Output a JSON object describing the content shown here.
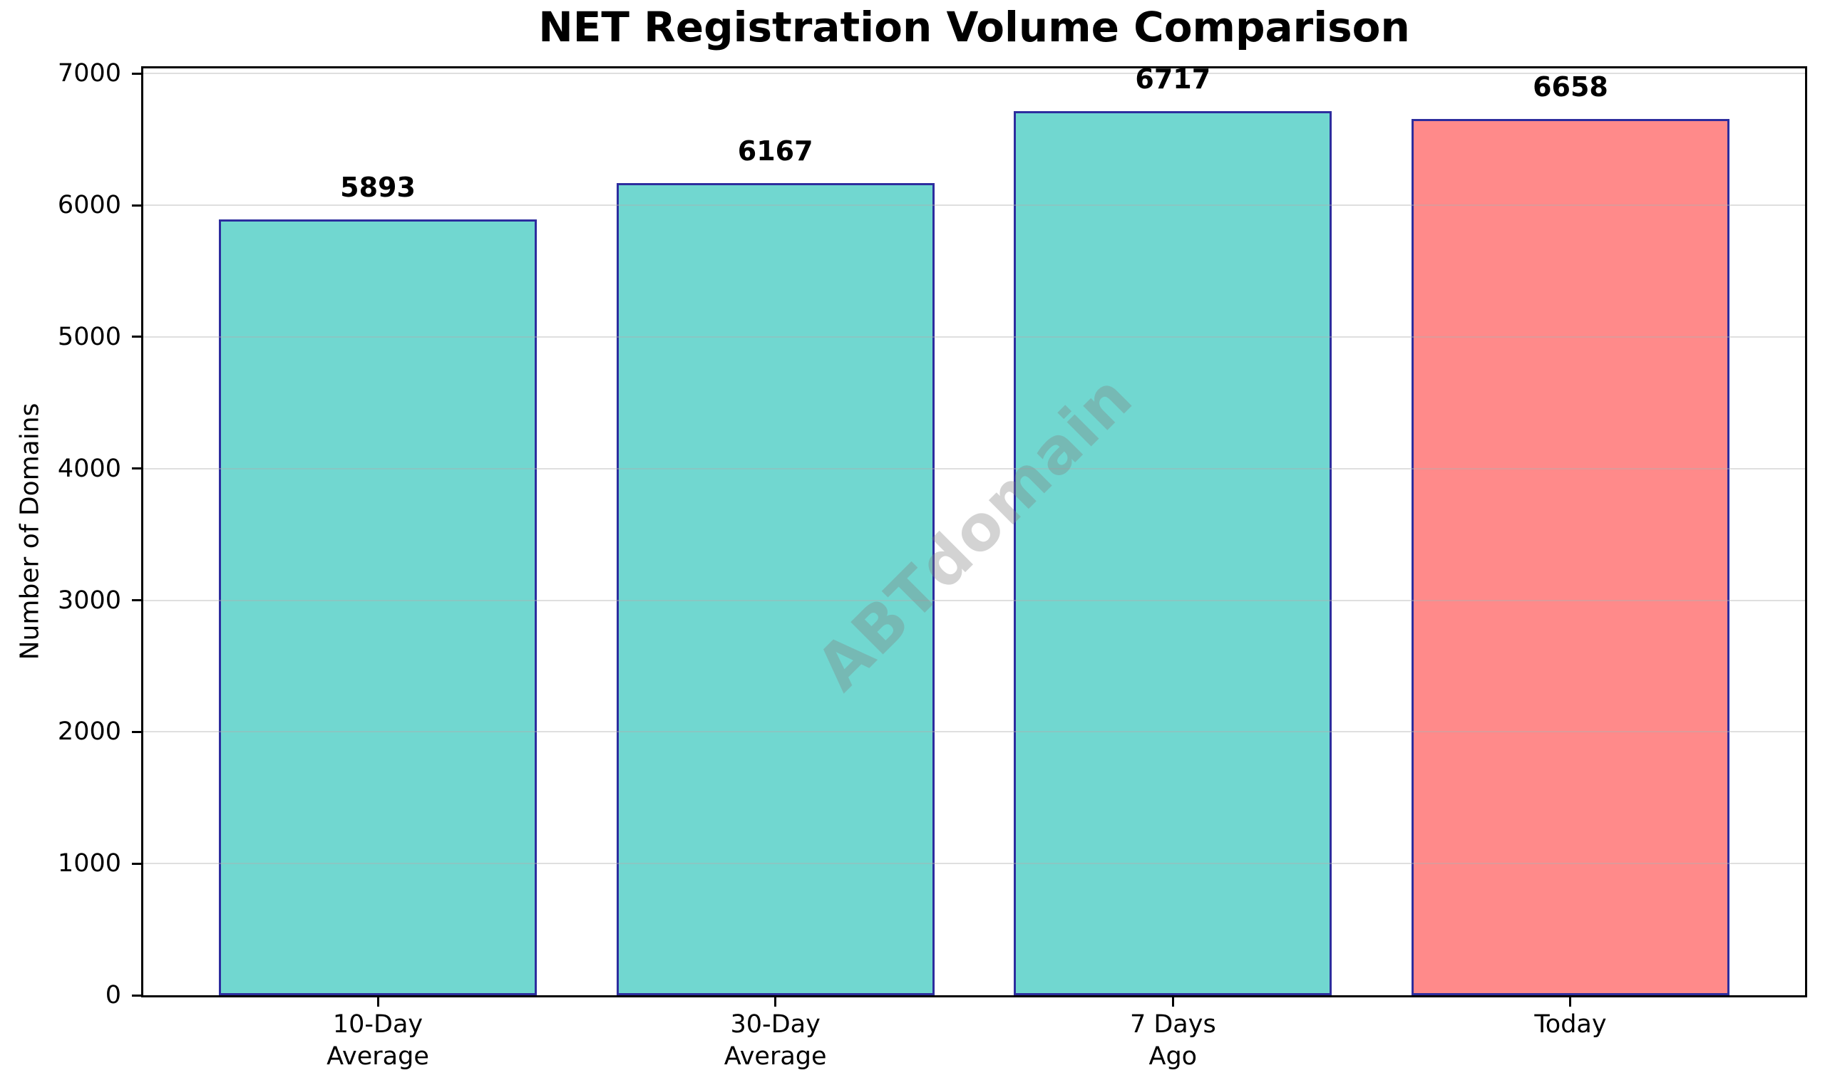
{
  "chart_data": {
    "type": "bar",
    "title": "NET Registration Volume Comparison",
    "ylabel": "Number of Domains",
    "xlabel": "",
    "categories": [
      "10-Day\nAverage",
      "30-Day\nAverage",
      "7 Days\nAgo",
      "Today"
    ],
    "values": [
      5893,
      6167,
      6717,
      6658
    ],
    "bar_value_labels": [
      "5893",
      "6167",
      "6717",
      "6658"
    ],
    "bar_colors": [
      "#71D7D0",
      "#71D7D0",
      "#71D7D0",
      "#FF8A8A"
    ],
    "colors": {
      "average_bar_fill": "#71D7D0",
      "today_bar_fill": "#FF8A8A",
      "bar_edge": "#2D2D9E",
      "gridline": "#E7E7E7",
      "axis_and_text": "#000000",
      "watermark": "#808080"
    },
    "yticks": [
      0,
      1000,
      2000,
      3000,
      4000,
      5000,
      6000,
      7000
    ],
    "ylim": [
      0,
      7040
    ],
    "grid": true,
    "legend_position": "none",
    "watermark": "ABTdomain"
  }
}
